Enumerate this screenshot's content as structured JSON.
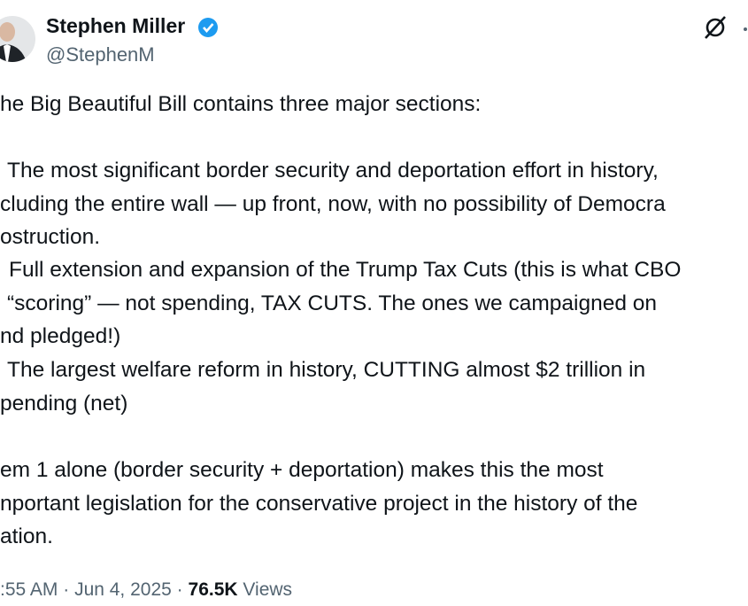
{
  "header": {
    "name": "Stephen Miller",
    "handle": "@StephenM"
  },
  "body": {
    "lines": [
      "he Big Beautiful Bill contains three major sections:",
      "The most significant border security and deportation effort in history,",
      "cluding the entire wall — up front, now, with no possibility of Democra",
      "ostruction.",
      "Full extension and expansion of the Trump Tax Cuts (this is what CBO",
      "“scoring” — not spending, TAX CUTS. The ones we campaigned on",
      "nd pledged!)",
      "The largest welfare reform in history, CUTTING almost $2 trillion in",
      "pending (net)",
      "em 1 alone (border security + deportation) makes this the most",
      "nportant legislation for the conservative project in the history of the",
      "ation."
    ]
  },
  "footer": {
    "time": ":55 AM",
    "separator": "·",
    "date": "Jun 4, 2025",
    "views_count": "76.5K",
    "views_label": "Views"
  }
}
